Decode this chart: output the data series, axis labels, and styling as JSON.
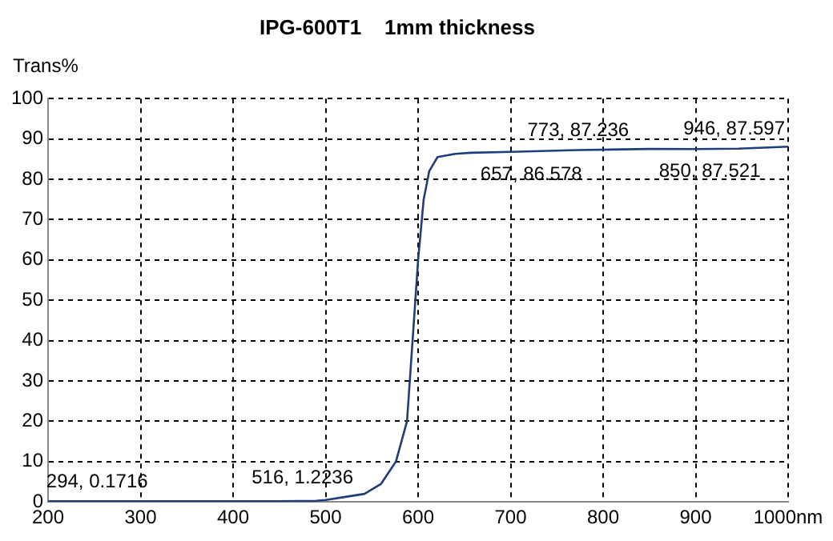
{
  "chart_data": {
    "type": "line",
    "title": "IPG-600T1    1mm thickness",
    "ylabel": "Trans%",
    "series": [
      {
        "color": "#1f3d7a",
        "x": [
          200,
          250,
          300,
          350,
          400,
          450,
          490,
          500,
          520,
          542,
          560,
          576,
          588,
          594,
          600,
          606,
          612,
          621,
          640,
          657,
          700,
          773,
          850,
          900,
          946,
          1000
        ],
        "values": [
          0.2,
          0.2,
          0.2,
          0.2,
          0.2,
          0.2,
          0.3,
          0.5,
          1.2,
          2,
          4.5,
          10,
          20,
          40,
          60,
          75,
          82,
          85.5,
          86.3,
          86.578,
          86.8,
          87.236,
          87.521,
          87.5,
          87.597,
          88.1
        ]
      }
    ],
    "xlim": [
      200,
      1000
    ],
    "xticks": [
      200,
      300,
      400,
      500,
      600,
      700,
      800,
      900,
      {
        "value": 1000,
        "label": "1000nm"
      }
    ],
    "ylim": [
      0,
      100
    ],
    "yticks": [
      0,
      10,
      20,
      30,
      40,
      50,
      60,
      70,
      80,
      90,
      100
    ],
    "grid": true,
    "legend": false,
    "marker": "none",
    "line_style": "solid",
    "annotations": [
      {
        "text": "294, 0.1716",
        "x": 294,
        "y": 0.1716
      },
      {
        "text": "516, 1.2236",
        "x": 516,
        "y": 1.2236
      },
      {
        "text": "657, 86.578",
        "x": 657,
        "y": 86.578
      },
      {
        "text": "773, 87.236",
        "x": 773,
        "y": 87.236
      },
      {
        "text": "850, 87.521",
        "x": 850,
        "y": 87.521
      },
      {
        "text": "946, 87.597",
        "x": 946,
        "y": 87.597
      }
    ]
  }
}
